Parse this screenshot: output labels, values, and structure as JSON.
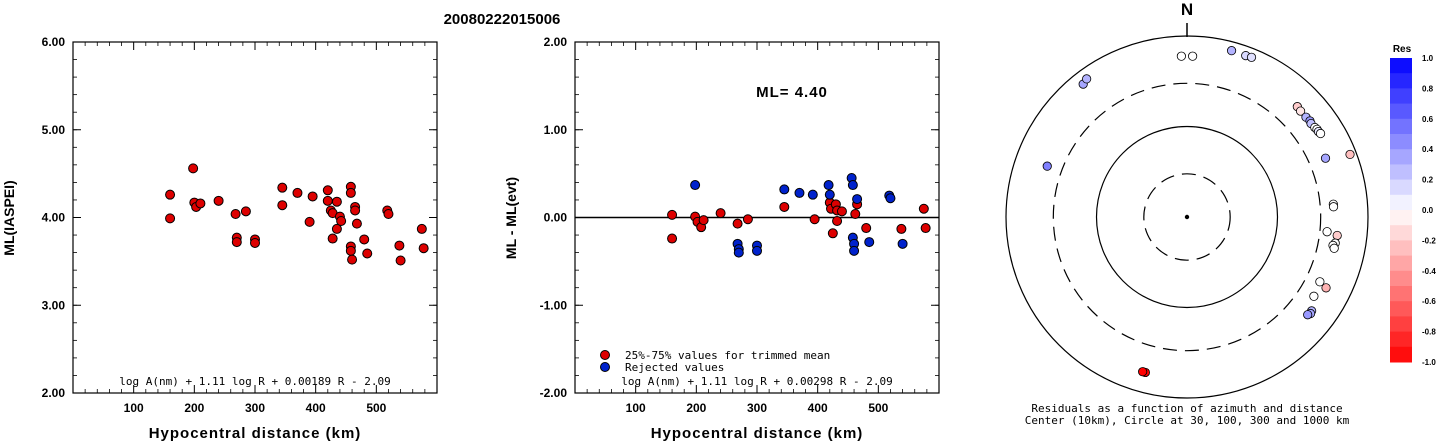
{
  "figure": {
    "title": "20080222015006"
  },
  "chart_data": [
    {
      "type": "scatter",
      "ylabel": "ML(IASPEI)",
      "xlabel": "Hypocentral distance (km)",
      "xlim": [
        0,
        600
      ],
      "ylim": [
        2.0,
        6.0
      ],
      "x_ticks": [
        "100",
        "200",
        "300",
        "400",
        "500"
      ],
      "y_ticks": [
        "2.00",
        "3.00",
        "4.00",
        "5.00",
        "6.00"
      ],
      "formula": "log A(nm) + 1.11 log R + 0.00189 R - 2.09",
      "series": [
        {
          "color": "#dd0000",
          "points": [
            [
              160,
              4.26
            ],
            [
              160,
              3.99
            ],
            [
              198,
              4.56
            ],
            [
              200,
              4.17
            ],
            [
              203,
              4.12
            ],
            [
              210,
              4.16
            ],
            [
              240,
              4.19
            ],
            [
              268,
              4.04
            ],
            [
              270,
              3.77
            ],
            [
              270,
              3.72
            ],
            [
              285,
              4.07
            ],
            [
              300,
              3.75
            ],
            [
              300,
              3.71
            ],
            [
              345,
              4.34
            ],
            [
              345,
              4.14
            ],
            [
              370,
              4.28
            ],
            [
              390,
              3.95
            ],
            [
              395,
              4.24
            ],
            [
              420,
              4.31
            ],
            [
              420,
              4.19
            ],
            [
              425,
              4.08
            ],
            [
              428,
              4.05
            ],
            [
              428,
              3.76
            ],
            [
              435,
              3.87
            ],
            [
              435,
              4.18
            ],
            [
              440,
              4.01
            ],
            [
              442,
              3.96
            ],
            [
              458,
              4.35
            ],
            [
              458,
              4.28
            ],
            [
              458,
              3.67
            ],
            [
              458,
              3.62
            ],
            [
              460,
              3.52
            ],
            [
              465,
              4.12
            ],
            [
              465,
              4.08
            ],
            [
              468,
              3.93
            ],
            [
              480,
              3.75
            ],
            [
              485,
              3.59
            ],
            [
              518,
              4.08
            ],
            [
              520,
              4.04
            ],
            [
              538,
              3.68
            ],
            [
              540,
              3.51
            ],
            [
              575,
              3.87
            ],
            [
              578,
              3.65
            ]
          ]
        }
      ]
    },
    {
      "type": "scatter",
      "ylabel": "ML - ML(evt)",
      "xlabel": "Hypocentral distance (km)",
      "xlim": [
        0,
        600
      ],
      "ylim": [
        -2.0,
        2.0
      ],
      "x_ticks": [
        "100",
        "200",
        "300",
        "400",
        "500"
      ],
      "y_ticks": [
        "-2.00",
        "-1.00",
        "0.00",
        "1.00",
        "2.00"
      ],
      "annotation": "ML= 4.40",
      "reference_line": 0,
      "formula": "log A(nm) + 1.11 log R + 0.00298 R - 2.09",
      "legend": [
        {
          "label": "25%-75% values for trimmed mean",
          "color": "#dd0000"
        },
        {
          "label": "Rejected values",
          "color": "#0022cc"
        }
      ],
      "series": [
        {
          "name": "25%-75% values for trimmed mean",
          "color": "#dd0000",
          "points": [
            [
              160,
              0.03
            ],
            [
              160,
              -0.24
            ],
            [
              198,
              0.01
            ],
            [
              202,
              -0.05
            ],
            [
              208,
              -0.11
            ],
            [
              212,
              -0.03
            ],
            [
              240,
              0.05
            ],
            [
              268,
              -0.07
            ],
            [
              285,
              -0.02
            ],
            [
              345,
              0.12
            ],
            [
              395,
              -0.02
            ],
            [
              420,
              0.17
            ],
            [
              422,
              0.1
            ],
            [
              425,
              -0.18
            ],
            [
              430,
              0.15
            ],
            [
              432,
              0.08
            ],
            [
              432,
              -0.04
            ],
            [
              440,
              0.07
            ],
            [
              462,
              0.04
            ],
            [
              465,
              0.15
            ],
            [
              480,
              -0.12
            ],
            [
              538,
              -0.13
            ],
            [
              575,
              0.1
            ],
            [
              578,
              -0.12
            ]
          ]
        },
        {
          "name": "Rejected values",
          "color": "#0022cc",
          "points": [
            [
              198,
              0.37
            ],
            [
              268,
              -0.3
            ],
            [
              270,
              -0.36
            ],
            [
              270,
              -0.4
            ],
            [
              300,
              -0.32
            ],
            [
              300,
              -0.38
            ],
            [
              345,
              0.32
            ],
            [
              370,
              0.28
            ],
            [
              392,
              0.26
            ],
            [
              418,
              0.37
            ],
            [
              420,
              0.26
            ],
            [
              456,
              0.45
            ],
            [
              458,
              0.37
            ],
            [
              458,
              -0.23
            ],
            [
              460,
              -0.3
            ],
            [
              460,
              -0.38
            ],
            [
              465,
              0.21
            ],
            [
              485,
              -0.28
            ],
            [
              518,
              0.25
            ],
            [
              520,
              0.22
            ],
            [
              540,
              -0.3
            ]
          ]
        }
      ]
    },
    {
      "type": "scatter",
      "subtype": "polar",
      "north_label": "N",
      "caption_line1": "Residuals as a function of azimuth and distance",
      "caption_line2": "Center (10km), Circle at 30, 100, 300 and 1000 km",
      "rings_km": [
        10,
        30,
        100,
        300,
        1000
      ],
      "colorbar": {
        "title": "Res",
        "ticks": [
          "1.0",
          "0.8",
          "0.6",
          "0.4",
          "0.2",
          "0.0",
          "-0.2",
          "-0.4",
          "-0.6",
          "-0.8",
          "-1.0"
        ],
        "max_color": "#0000ff",
        "zero_color": "#ffffff",
        "min_color": "#ff0000"
      },
      "points_polar": [
        {
          "az": 322,
          "dist_km": 730,
          "res": 0.35
        },
        {
          "az": 324,
          "dist_km": 770,
          "res": 0.3
        },
        {
          "az": 358,
          "dist_km": 600,
          "res": 0.0
        },
        {
          "az": 2,
          "dist_km": 600,
          "res": 0.0
        },
        {
          "az": 15,
          "dist_km": 800,
          "res": 0.3
        },
        {
          "az": 20,
          "dist_km": 790,
          "res": 0.15
        },
        {
          "az": 22,
          "dist_km": 800,
          "res": 0.12
        },
        {
          "az": 45,
          "dist_km": 530,
          "res": -0.2
        },
        {
          "az": 47,
          "dist_km": 520,
          "res": -0.1
        },
        {
          "az": 50,
          "dist_km": 520,
          "res": 0.3
        },
        {
          "az": 52,
          "dist_km": 530,
          "res": 0.4
        },
        {
          "az": 53,
          "dist_km": 520,
          "res": 0.25
        },
        {
          "az": 55,
          "dist_km": 530,
          "res": 0.0
        },
        {
          "az": 56,
          "dist_km": 540,
          "res": 0.0
        },
        {
          "az": 57,
          "dist_km": 540,
          "res": 0.1
        },
        {
          "az": 58,
          "dist_km": 550,
          "res": 0.0
        },
        {
          "az": 67,
          "dist_km": 460,
          "res": 0.35
        },
        {
          "az": 69,
          "dist_km": 850,
          "res": -0.25
        },
        {
          "az": 85,
          "dist_km": 420,
          "res": 0.0
        },
        {
          "az": 86,
          "dist_km": 420,
          "res": 0.0
        },
        {
          "az": 96,
          "dist_km": 360,
          "res": 0.0
        },
        {
          "az": 97,
          "dist_km": 470,
          "res": -0.2
        },
        {
          "az": 100,
          "dist_km": 460,
          "res": 0.0
        },
        {
          "az": 101,
          "dist_km": 440,
          "res": 0.0
        },
        {
          "az": 102,
          "dist_km": 460,
          "res": 0.0
        },
        {
          "az": 116,
          "dist_km": 430,
          "res": 0.0
        },
        {
          "az": 117,
          "dist_km": 530,
          "res": -0.3
        },
        {
          "az": 122,
          "dist_km": 450,
          "res": 0.0
        },
        {
          "az": 127,
          "dist_km": 530,
          "res": 0.3
        },
        {
          "az": 128,
          "dist_km": 540,
          "res": 0.35
        },
        {
          "az": 129,
          "dist_km": 520,
          "res": 0.4
        },
        {
          "az": 195,
          "dist_km": 600,
          "res": -1.0
        },
        {
          "az": 196,
          "dist_km": 600,
          "res": -1.0
        },
        {
          "az": 290,
          "dist_km": 440,
          "res": 0.5
        }
      ]
    }
  ]
}
